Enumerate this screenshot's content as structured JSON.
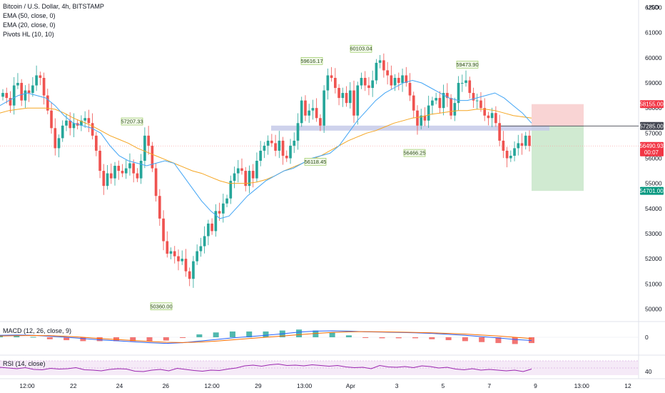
{
  "legend": {
    "symbol": "Bitcoin / U.S. Dollar, 4h, BITSTAMP",
    "ema50": "EMA (50, close, 0)",
    "ema20": "EMA (20, close, 0)",
    "pivots": "Pivots HL (10, 10)"
  },
  "currency": "USD",
  "macd_label": "MACD (12, 26, close, 9)",
  "rsi_label": "RSI (14, close)",
  "colors": {
    "up": "#26a69a",
    "down": "#ef5350",
    "ema50": "#f5a623",
    "ema20": "#42a5f5",
    "macd": "#2962ff",
    "signal": "#ff6d00",
    "rsi": "#9c27b0",
    "stop_zone": "#f7c5c5",
    "target_zone": "#c8e6c9",
    "resistance_band": "#c5cae9"
  },
  "chart_data": [
    {
      "type": "candlestick",
      "title": "Bitcoin / U.S. Dollar, 4h, BITSTAMP",
      "y_ticks": [
        50000,
        51000,
        52000,
        53000,
        54000,
        55000,
        56000,
        57000,
        58000,
        59000,
        60000,
        61000,
        62000
      ],
      "ylim": [
        49500,
        62300
      ],
      "x_tick_labels": [
        "12:00",
        "22",
        "24",
        "26",
        "12:00",
        "29",
        "13:00",
        "Apr",
        "3",
        "5",
        "7",
        "9",
        "13:00",
        "12"
      ],
      "price_tags": [
        {
          "label": "58155.00",
          "value": 58155,
          "color": "#f23645"
        },
        {
          "label": "57285.00",
          "value": 57285,
          "color": "#434651"
        },
        {
          "label": "56490.93",
          "value": 56490.93,
          "color": "#f23645",
          "sub": "00:07"
        },
        {
          "label": "54701.00",
          "value": 54701,
          "color": "#089981"
        }
      ],
      "pivot_labels": [
        {
          "label": "57207.33",
          "value": 57207.33,
          "pos": "high"
        },
        {
          "label": "50360.00",
          "value": 50360,
          "pos": "low"
        },
        {
          "label": "59616.17",
          "value": 59616.17,
          "pos": "high"
        },
        {
          "label": "56118.45",
          "value": 56118.45,
          "pos": "low"
        },
        {
          "label": "60103.04",
          "value": 60103.04,
          "pos": "high"
        },
        {
          "label": "56466.25",
          "value": 56466.25,
          "pos": "low"
        },
        {
          "label": "59473.90",
          "value": 59473.9,
          "pos": "high"
        }
      ],
      "position_tool": {
        "entry": 57285,
        "stop": 58155,
        "target": 54701
      },
      "resistance_band": [
        57100,
        57300
      ],
      "closes": [
        58600,
        58400,
        58100,
        58900,
        59000,
        58300,
        58700,
        58600,
        58900,
        59300,
        59200,
        58500,
        57900,
        57200,
        56400,
        56800,
        57300,
        57500,
        57200,
        57400,
        57300,
        57500,
        57600,
        57400,
        56900,
        56300,
        55500,
        54900,
        55400,
        55200,
        55700,
        55500,
        55400,
        55600,
        55800,
        55400,
        55200,
        55900,
        56900,
        56500,
        55600,
        54500,
        53600,
        52700,
        52200,
        52300,
        52100,
        51900,
        52000,
        51500,
        51200,
        51900,
        52300,
        52500,
        52900,
        53400,
        53100,
        53900,
        53800,
        54200,
        54400,
        55100,
        55400,
        55600,
        55500,
        54900,
        55500,
        55200,
        55900,
        56300,
        56500,
        56700,
        56600,
        56300,
        56700,
        56100,
        56000,
        56500,
        56700,
        57400,
        58300,
        57700,
        57900,
        58000,
        57600,
        57300,
        58700,
        59300,
        59200,
        58800,
        58400,
        58600,
        58200,
        58700,
        57700,
        58900,
        59200,
        58900,
        58800,
        59100,
        59800,
        59900,
        59500,
        59300,
        58900,
        59200,
        59000,
        59300,
        59000,
        58500,
        57900,
        57300,
        57700,
        57500,
        58100,
        58300,
        58400,
        58000,
        58600,
        58400,
        57700,
        58200,
        59000,
        59000,
        59100,
        58600,
        58300,
        58300,
        58000,
        57700,
        57600,
        57800,
        57400,
        56700,
        56300,
        56000,
        56100,
        56400,
        56600,
        56500,
        56900,
        56491
      ],
      "ema50": [
        57800,
        57900,
        57950,
        58000,
        58000,
        58000,
        57950,
        57800,
        57600,
        57450,
        57300,
        57100,
        56900,
        56750,
        56600,
        56400,
        56250,
        56100,
        55950,
        55800,
        55650,
        55500,
        55400,
        55250,
        55100,
        55000,
        55000,
        55000,
        55050,
        55150,
        55300,
        55500,
        55650,
        55800,
        55950,
        56100,
        56300,
        56500,
        56700,
        56850,
        57000,
        57100,
        57250,
        57400,
        57500,
        57600,
        57650,
        57750,
        57800,
        57850,
        57900,
        57900,
        57950,
        57950,
        57900,
        57800,
        57700,
        57650,
        57600
      ],
      "ema20": [
        58100,
        58300,
        58500,
        58600,
        58500,
        58400,
        58100,
        57700,
        57400,
        57300,
        57200,
        57000,
        56500,
        56100,
        55900,
        55800,
        55700,
        55800,
        55900,
        55800,
        55300,
        54800,
        54300,
        53900,
        53600,
        53700,
        54100,
        54500,
        54800,
        55100,
        55300,
        55500,
        55600,
        55800,
        56000,
        56100,
        56200,
        56500,
        57000,
        57500,
        57900,
        58300,
        58600,
        58800,
        59000,
        59100,
        59000,
        58800,
        58600,
        58400,
        58300,
        58300,
        58400,
        58500,
        58600,
        58400,
        58100,
        57800,
        57400
      ],
      "macd": [
        0.3,
        0.35,
        0.3,
        0.15,
        0.0,
        -0.2,
        -0.4,
        -0.55,
        -0.7,
        -0.85,
        -0.95,
        -0.85,
        -0.6,
        -0.35,
        -0.1,
        0.1,
        0.3,
        0.55,
        0.8,
        0.95,
        1.0,
        0.95,
        0.85,
        0.8,
        0.75,
        0.7,
        0.6,
        0.45,
        0.3,
        0.1,
        -0.1,
        -0.35,
        -0.5
      ],
      "macd_signal": [
        0.2,
        0.25,
        0.28,
        0.25,
        0.15,
        0.0,
        -0.2,
        -0.35,
        -0.5,
        -0.65,
        -0.78,
        -0.82,
        -0.75,
        -0.6,
        -0.4,
        -0.2,
        0.0,
        0.2,
        0.4,
        0.6,
        0.75,
        0.85,
        0.88,
        0.85,
        0.8,
        0.75,
        0.7,
        0.6,
        0.5,
        0.35,
        0.2,
        0.0,
        -0.2
      ],
      "rsi": [
        52,
        50,
        48,
        51,
        46,
        45,
        49,
        47,
        48,
        51,
        45,
        44,
        42,
        46,
        48,
        47,
        41,
        40,
        44,
        46,
        42,
        49,
        46,
        43,
        41,
        44,
        43,
        47,
        50,
        56,
        58,
        55,
        59,
        61,
        57,
        58,
        56,
        59,
        57,
        55,
        57,
        53,
        51,
        52,
        48,
        57,
        53,
        52,
        54,
        51,
        56,
        54,
        50,
        52,
        47,
        45,
        48,
        44,
        46,
        44,
        42,
        44,
        40,
        47
      ],
      "macd_ytick": "0",
      "rsi_ytick": "40"
    }
  ]
}
